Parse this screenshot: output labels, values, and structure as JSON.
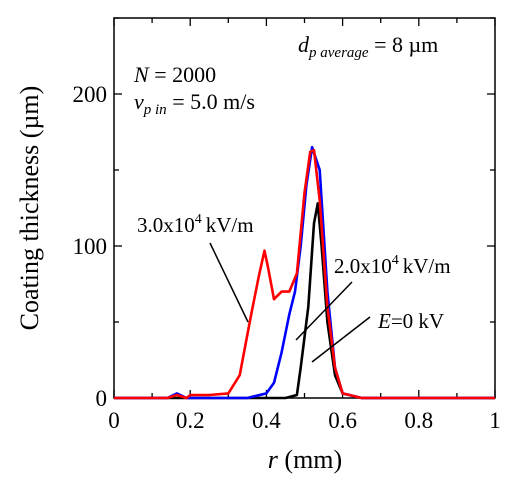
{
  "chart_data": {
    "type": "line",
    "xlabel": "r (mm)",
    "ylabel": "Coating thickness (µm)",
    "xlim": [
      0,
      1
    ],
    "ylim": [
      0,
      250
    ],
    "xticks": [
      "0",
      "0.2",
      "0.4",
      "0.6",
      "0.8",
      "1"
    ],
    "yticks": [
      "0",
      "100",
      "200"
    ],
    "grid": false,
    "notes": {
      "dp_average": "d_p average = 8 µm",
      "N": "N = 2000",
      "vp_in": "v_p in = 5.0 m/s"
    },
    "series": [
      {
        "name": "3.0x10^4 kV/m",
        "color": "#ff0000",
        "x": [
          0,
          0.14,
          0.165,
          0.19,
          0.2,
          0.25,
          0.3,
          0.33,
          0.36,
          0.38,
          0.395,
          0.405,
          0.42,
          0.44,
          0.46,
          0.48,
          0.5,
          0.515,
          0.525,
          0.54,
          0.56,
          0.58,
          0.6,
          0.65,
          1
        ],
        "y": [
          0,
          0,
          2,
          0,
          2,
          2,
          3,
          15,
          55,
          80,
          97,
          85,
          65,
          70,
          70,
          82,
          135,
          162,
          163,
          130,
          60,
          20,
          3,
          0,
          0
        ]
      },
      {
        "name": "2.0x10^4 kV/m",
        "color": "#0000ff",
        "x": [
          0,
          0.14,
          0.165,
          0.19,
          0.2,
          0.35,
          0.4,
          0.42,
          0.44,
          0.46,
          0.475,
          0.49,
          0.505,
          0.52,
          0.54,
          0.56,
          0.58,
          0.6,
          0.65,
          1
        ],
        "y": [
          0,
          0,
          3,
          0,
          0,
          0,
          3,
          10,
          30,
          55,
          70,
          100,
          140,
          165,
          150,
          70,
          20,
          3,
          0,
          0
        ]
      },
      {
        "name": "E=0 kV",
        "color": "#000000",
        "x": [
          0,
          0.2,
          0.45,
          0.48,
          0.49,
          0.5,
          0.51,
          0.525,
          0.535,
          0.545,
          0.56,
          0.58,
          0.6,
          0.65,
          1
        ],
        "y": [
          0,
          0,
          0,
          2,
          20,
          40,
          60,
          115,
          128,
          100,
          50,
          15,
          3,
          0,
          0
        ]
      }
    ]
  },
  "labels": {
    "sup4": "4",
    "kvm": "kV/m",
    "s1_base": "3.0x10",
    "s2_base": "2.0x10",
    "e_italic": "E",
    "e_rest": "=0 kV",
    "dp_d": "d",
    "dp_sub": "p average",
    "dp_rest": " = 8 µm",
    "n_italic": "N",
    "n_rest": " = 2000",
    "v_italic": "v",
    "v_sub": "p in",
    "v_rest": " = 5.0 m/s",
    "r_italic": "r",
    "r_rest": " (mm)"
  }
}
